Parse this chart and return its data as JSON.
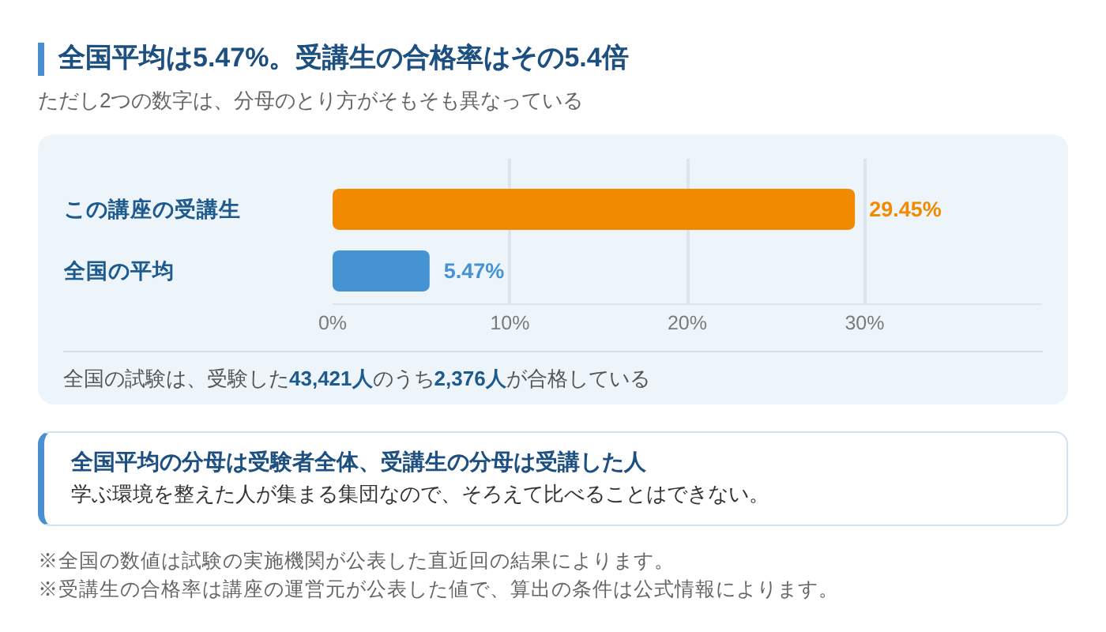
{
  "chart_data": {
    "type": "bar",
    "orientation": "horizontal",
    "title": "全国平均は5.47%。受講生の合格率はその5.4倍",
    "subtitle": "ただし2つの数字は、分母のとり方がそもそも異なっている",
    "categories": [
      "この講座の受講生",
      "全国の平均"
    ],
    "values": [
      29.45,
      5.47
    ],
    "colors": [
      "#f28a00",
      "#4593d3"
    ],
    "value_labels": [
      "29.45%",
      "5.47%"
    ],
    "xlim": [
      0,
      40
    ],
    "xticks": [
      {
        "value": 0,
        "label": "0%"
      },
      {
        "value": 10,
        "label": "10%"
      },
      {
        "value": 20,
        "label": "20%"
      },
      {
        "value": 30,
        "label": "30%"
      }
    ],
    "grid": "x",
    "annotations": [
      "全国の試験は、受験した43,421人のうち2,376人が合格している",
      "全国平均の分母は受験者全体、受講生の分母は受講した人",
      "学ぶ環境を整えた人が集まる集団なので、そろえて比べることはできない。",
      "※全国の数値は試験の実施機関が公表した直近回の結果によります。",
      "※受講生の合格率は講座の運営元が公表した値で、算出の条件は公式情報によります。"
    ]
  }
}
